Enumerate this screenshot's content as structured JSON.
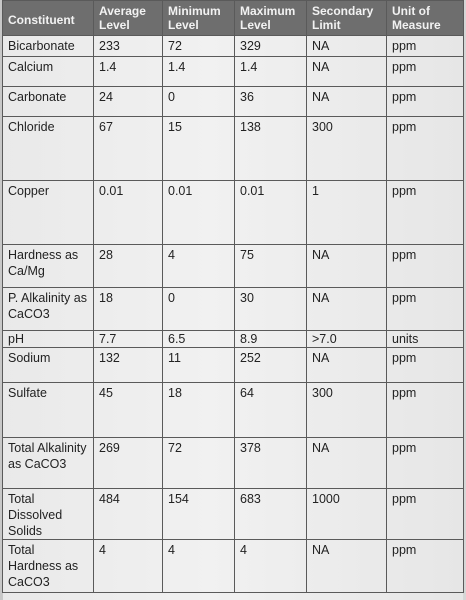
{
  "table": {
    "headers": [
      "Constituent",
      "Average Level",
      "Minimum Level",
      "Maximum Level",
      "Secondary Limit",
      "Unit of Measure"
    ],
    "rows": [
      {
        "constituent": "Bicarbonate",
        "average": "233",
        "minimum": "72",
        "maximum": "329",
        "limit": "NA",
        "unit": "ppm"
      },
      {
        "constituent": "Calcium",
        "average": "1.4",
        "minimum": "1.4",
        "maximum": "1.4",
        "limit": "NA",
        "unit": "ppm"
      },
      {
        "constituent": "Carbonate",
        "average": "24",
        "minimum": "0",
        "maximum": "36",
        "limit": "NA",
        "unit": "ppm"
      },
      {
        "constituent": "Chloride",
        "average": "67",
        "minimum": "15",
        "maximum": "138",
        "limit": "300",
        "unit": "ppm"
      },
      {
        "constituent": "Copper",
        "average": "0.01",
        "minimum": "0.01",
        "maximum": "0.01",
        "limit": "1",
        "unit": "ppm"
      },
      {
        "constituent": "Hardness as Ca/Mg",
        "average": "28",
        "minimum": "4",
        "maximum": "75",
        "limit": "NA",
        "unit": "ppm"
      },
      {
        "constituent": "P. Alkalinity as CaCO3",
        "average": "18",
        "minimum": "0",
        "maximum": "30",
        "limit": "NA",
        "unit": "ppm"
      },
      {
        "constituent": "pH",
        "average": "7.7",
        "minimum": "6.5",
        "maximum": "8.9",
        "limit": ">7.0",
        "unit": "units"
      },
      {
        "constituent": "Sodium",
        "average": "132",
        "minimum": "11",
        "maximum": "252",
        "limit": "NA",
        "unit": "ppm"
      },
      {
        "constituent": "Sulfate",
        "average": "45",
        "minimum": "18",
        "maximum": "64",
        "limit": "300",
        "unit": "ppm"
      },
      {
        "constituent": "Total Alkalinity as CaCO3",
        "average": "269",
        "minimum": "72",
        "maximum": "378",
        "limit": "NA",
        "unit": "ppm"
      },
      {
        "constituent": "Total Dissolved Solids",
        "average": "484",
        "minimum": "154",
        "maximum": "683",
        "limit": "1000",
        "unit": "ppm"
      },
      {
        "constituent": "Total Hardness as CaCO3",
        "average": "4",
        "minimum": "4",
        "maximum": "4",
        "limit": "NA",
        "unit": "ppm"
      }
    ]
  }
}
